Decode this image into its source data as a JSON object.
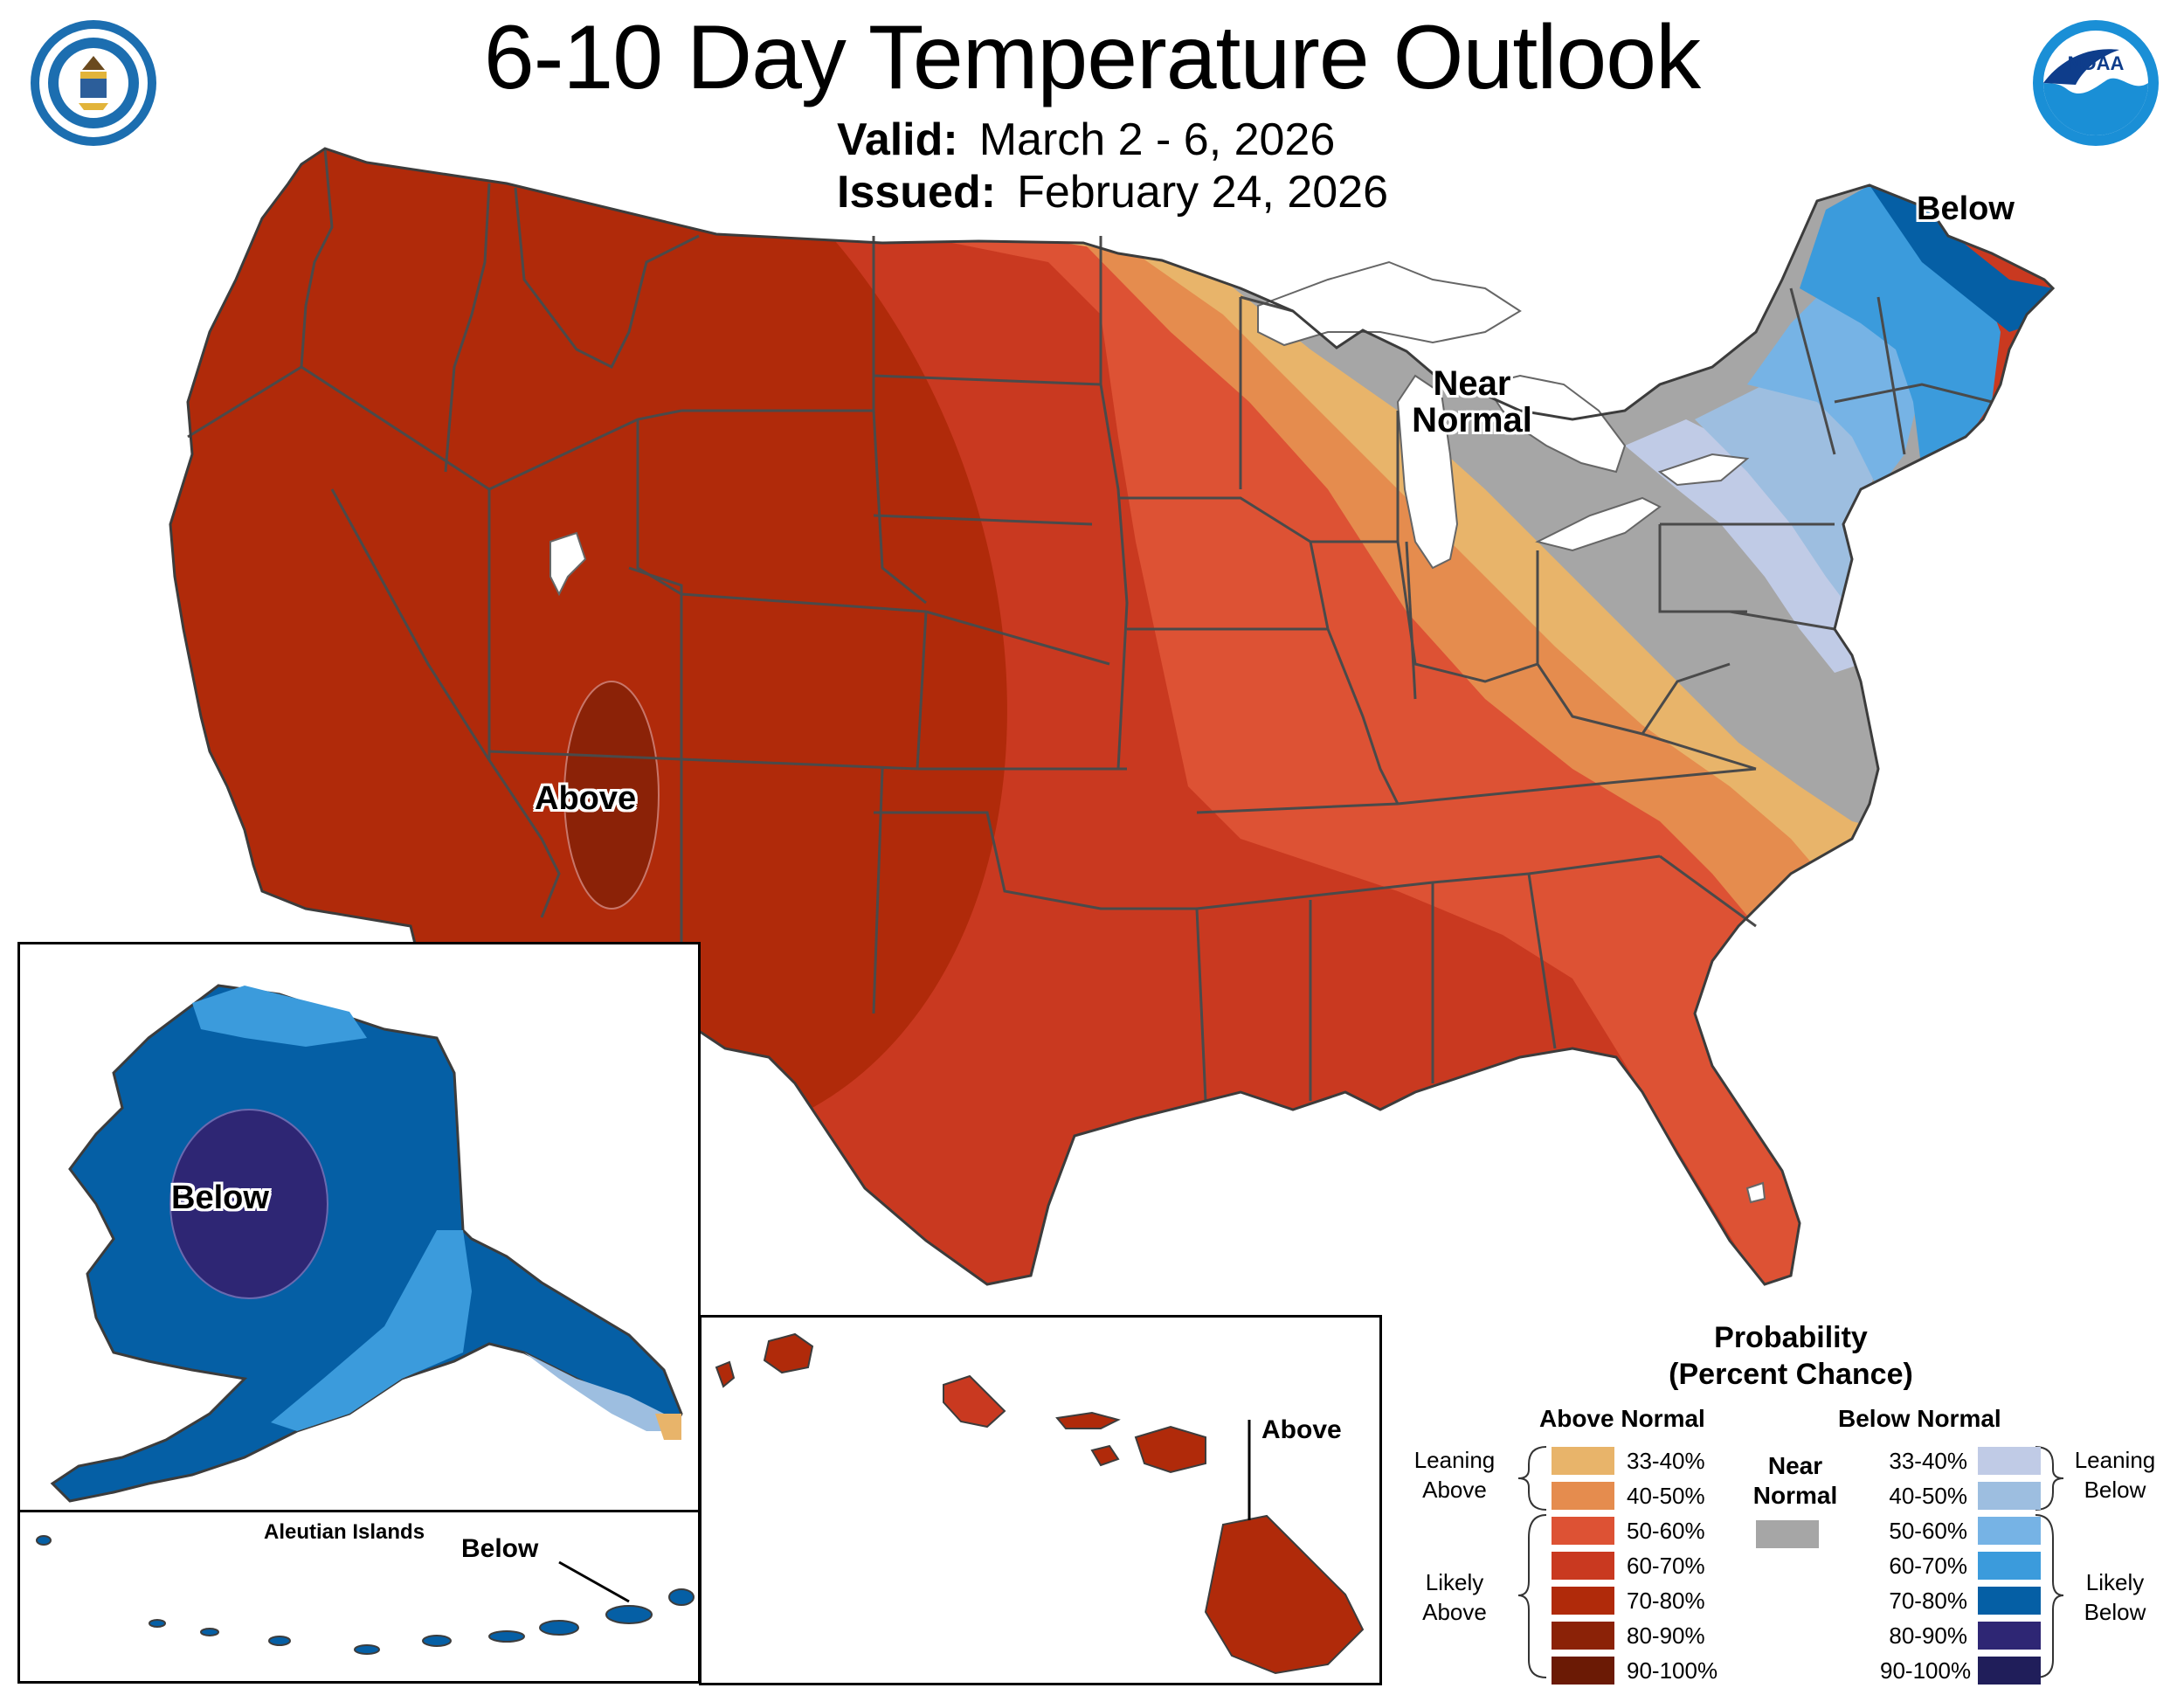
{
  "header": {
    "title": "6-10 Day Temperature Outlook",
    "valid_label": "Valid:",
    "valid_dates": "March 2 - 6, 2026",
    "issued_label": "Issued:",
    "issued_date": "February 24, 2026"
  },
  "logos": {
    "left": "department-of-commerce-seal",
    "left_text": "DEPARTMENT OF COMMERCE · UNITED STATES OF AMERICA",
    "right": "noaa-logo",
    "right_text": "NOAA"
  },
  "map_labels": {
    "conus_above": "Above",
    "conus_below": "Below",
    "conus_near_1": "Near",
    "conus_near_2": "Normal",
    "alaska_below": "Below",
    "aleutian_title": "Aleutian Islands",
    "aleutian_below": "Below",
    "hawaii_above": "Above"
  },
  "legend": {
    "title_1": "Probability",
    "title_2": "(Percent Chance)",
    "above_header": "Above Normal",
    "below_header": "Below Normal",
    "near_header_1": "Near",
    "near_header_2": "Normal",
    "leaning_above_1": "Leaning",
    "leaning_above_2": "Above",
    "likely_above_1": "Likely",
    "likely_above_2": "Above",
    "leaning_below_1": "Leaning",
    "leaning_below_2": "Below",
    "likely_below_1": "Likely",
    "likely_below_2": "Below",
    "above_rows": [
      "33-40%",
      "40-50%",
      "50-60%",
      "60-70%",
      "70-80%",
      "80-90%",
      "90-100%"
    ],
    "below_rows": [
      "33-40%",
      "40-50%",
      "50-60%",
      "60-70%",
      "70-80%",
      "80-90%",
      "90-100%"
    ],
    "above_colors": [
      "#E8B46A",
      "#E58C4E",
      "#DD5234",
      "#C93920",
      "#B02A0A",
      "#8B2207",
      "#6B1A05"
    ],
    "below_colors": [
      "#C0CBE6",
      "#9DBEE0",
      "#76B3E5",
      "#3B9BDC",
      "#055FA5",
      "#2E2674",
      "#201E5A"
    ],
    "near_color": "#A6A6A6"
  }
}
